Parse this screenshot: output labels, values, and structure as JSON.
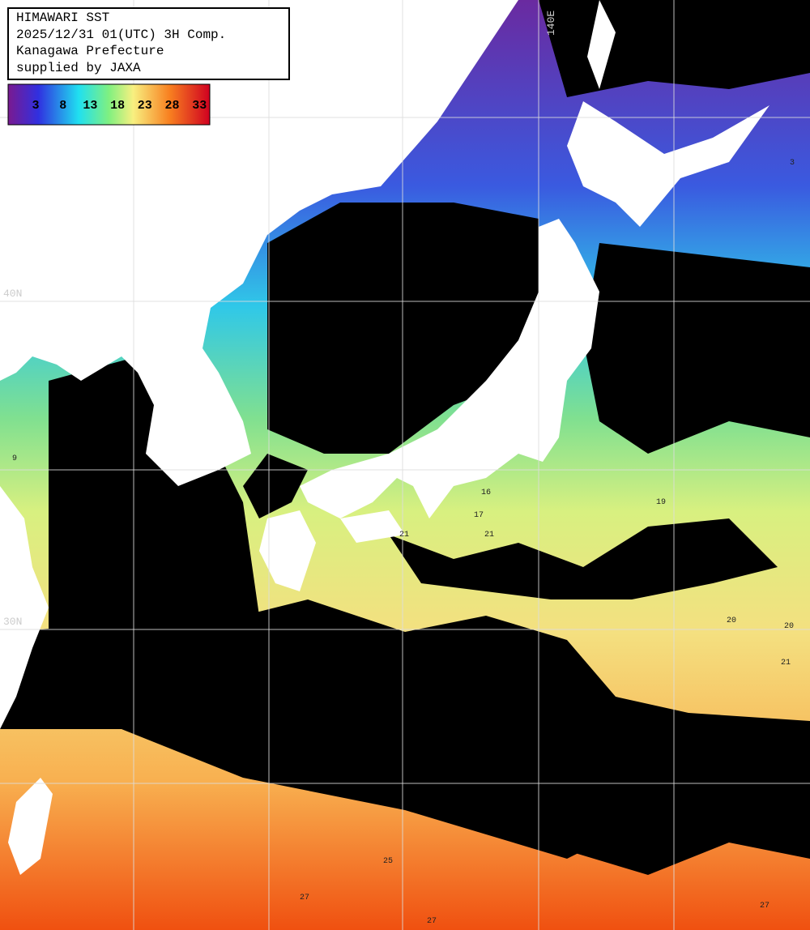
{
  "header": {
    "lines": [
      "HIMAWARI SST",
      "2025/12/31 01(UTC) 3H Comp.",
      "Kanagawa Prefecture",
      "supplied by JAXA"
    ]
  },
  "legend": {
    "ticks": [
      "3",
      "8",
      "13",
      "18",
      "23",
      "28",
      "33"
    ]
  },
  "grid_labels": {
    "longitude": "140E",
    "latitudes": [
      "40N",
      "30N"
    ]
  },
  "contour_labels": [
    "16",
    "17",
    "21",
    "21",
    "19",
    "20",
    "20",
    "21",
    "3",
    "9",
    "25",
    "27",
    "27",
    "27"
  ]
}
